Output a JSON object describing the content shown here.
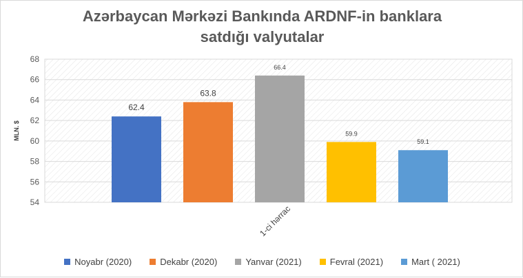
{
  "chart_data": {
    "type": "bar",
    "title_line1": "Azərbaycan Mərkəzi Bankında ARDNF-in banklara",
    "title_line2": "satdığı valyutalar",
    "ylabel": "MLN. $",
    "ylim": [
      54,
      68
    ],
    "yticks": [
      "54",
      "56",
      "58",
      "60",
      "62",
      "64",
      "66",
      "68"
    ],
    "categories": [
      "1-ci hərrac"
    ],
    "grid": true,
    "legend_position": "bottom",
    "series": [
      {
        "name": "Noyabr (2020)",
        "values": [
          62.4
        ],
        "label": "62.4",
        "color": "#4472c4"
      },
      {
        "name": "Dekabr (2020)",
        "values": [
          63.8
        ],
        "label": "63.8",
        "color": "#ed7d31"
      },
      {
        "name": "Yanvar (2021)",
        "values": [
          66.4
        ],
        "label": "66.4",
        "color": "#a5a5a5"
      },
      {
        "name": "Fevral (2021)",
        "values": [
          59.9
        ],
        "label": "59.9",
        "color": "#ffc000"
      },
      {
        "name": "Mart ( 2021)",
        "values": [
          59.1
        ],
        "label": "59.1",
        "color": "#5b9bd5"
      }
    ]
  }
}
